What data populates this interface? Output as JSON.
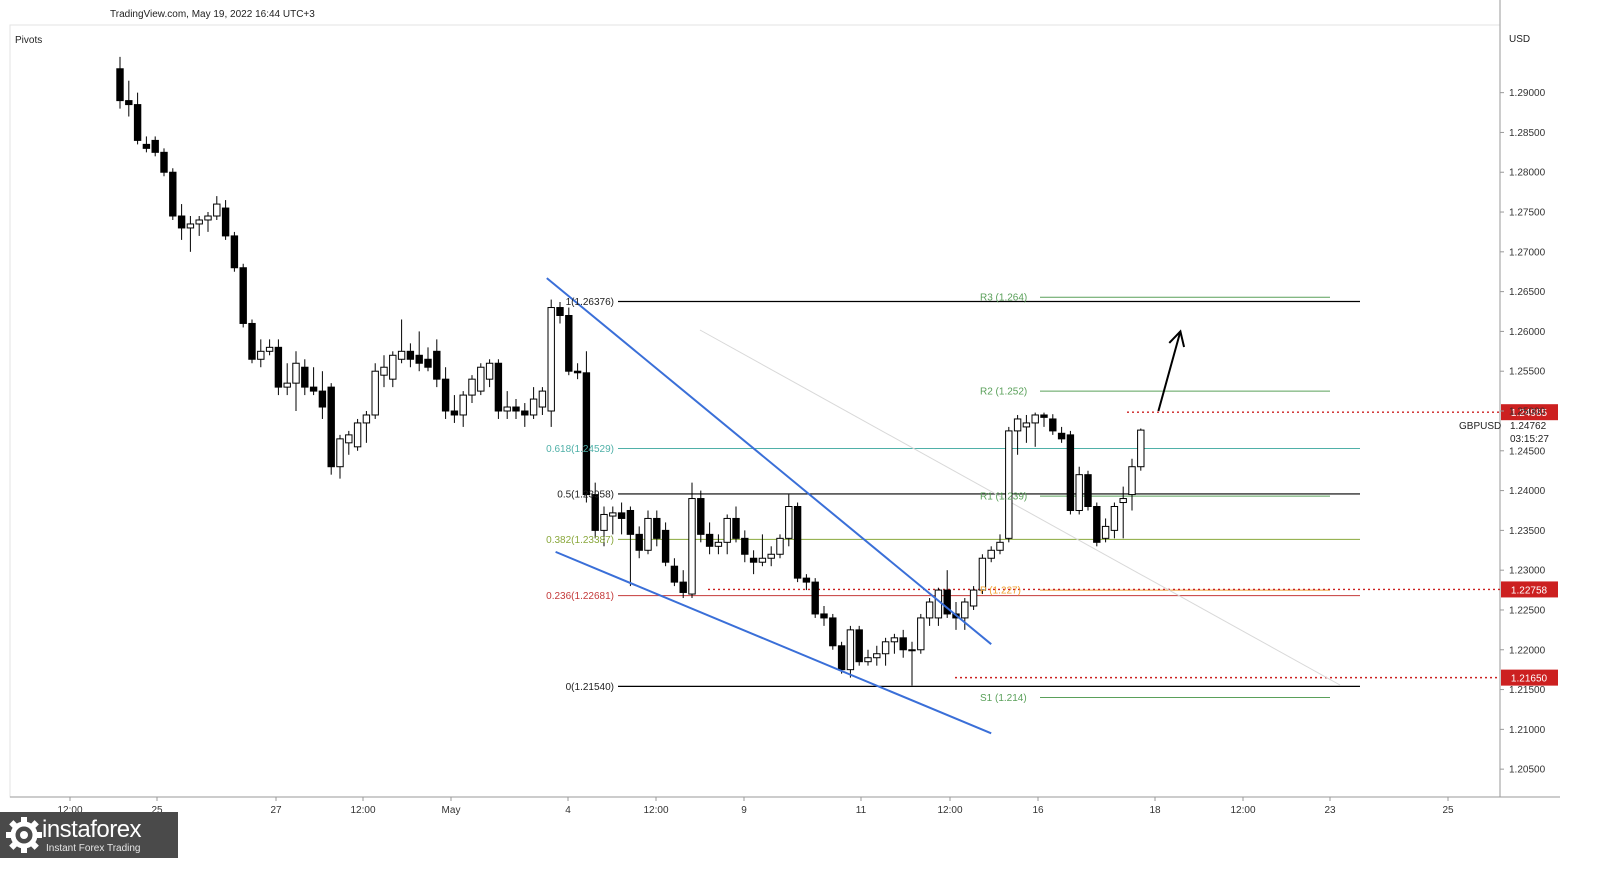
{
  "header": {
    "source": "TradingView.com, May 19, 2022 16:44 UTC+3",
    "indicator": "Pivots",
    "currency": "USD",
    "symbol": "GBPUSD",
    "last_price": "1.24762",
    "countdown": "03:15:27"
  },
  "logo": {
    "brand": "instaforex",
    "tagline": "Instant Forex Trading"
  },
  "chart_data": {
    "type": "candlestick",
    "symbol": "GBPUSD",
    "y_axis_ticks": [
      "1.29000",
      "1.28500",
      "1.28000",
      "1.27500",
      "1.27000",
      "1.26500",
      "1.26000",
      "1.25500",
      "1.25000",
      "1.24500",
      "1.24000",
      "1.23500",
      "1.23000",
      "1.22500",
      "1.22000",
      "1.21500",
      "1.21000",
      "1.20500"
    ],
    "ylim": [
      1.2015,
      1.2985
    ],
    "x_axis_ticks": [
      "12:00",
      "25",
      "27",
      "12:00",
      "May",
      "4",
      "12:00",
      "9",
      "11",
      "12:00",
      "16",
      "18",
      "12:00",
      "23",
      "25"
    ],
    "candles": [
      {
        "o": 1.293,
        "h": 1.2945,
        "l": 1.288,
        "c": 1.289
      },
      {
        "o": 1.289,
        "h": 1.2915,
        "l": 1.287,
        "c": 1.2885
      },
      {
        "o": 1.2885,
        "h": 1.29,
        "l": 1.2835,
        "c": 1.284
      },
      {
        "o": 1.2835,
        "h": 1.2845,
        "l": 1.2825,
        "c": 1.283
      },
      {
        "o": 1.284,
        "h": 1.2845,
        "l": 1.282,
        "c": 1.2825
      },
      {
        "o": 1.2825,
        "h": 1.283,
        "l": 1.2795,
        "c": 1.28
      },
      {
        "o": 1.28,
        "h": 1.2805,
        "l": 1.274,
        "c": 1.2745
      },
      {
        "o": 1.2745,
        "h": 1.276,
        "l": 1.2715,
        "c": 1.273
      },
      {
        "o": 1.273,
        "h": 1.2745,
        "l": 1.27,
        "c": 1.2735
      },
      {
        "o": 1.2735,
        "h": 1.2745,
        "l": 1.272,
        "c": 1.274
      },
      {
        "o": 1.274,
        "h": 1.275,
        "l": 1.2725,
        "c": 1.2745
      },
      {
        "o": 1.2745,
        "h": 1.277,
        "l": 1.274,
        "c": 1.276
      },
      {
        "o": 1.2755,
        "h": 1.2765,
        "l": 1.2715,
        "c": 1.272
      },
      {
        "o": 1.272,
        "h": 1.2725,
        "l": 1.2675,
        "c": 1.268
      },
      {
        "o": 1.268,
        "h": 1.2685,
        "l": 1.2605,
        "c": 1.261
      },
      {
        "o": 1.261,
        "h": 1.2615,
        "l": 1.256,
        "c": 1.2565
      },
      {
        "o": 1.2565,
        "h": 1.259,
        "l": 1.2555,
        "c": 1.2575
      },
      {
        "o": 1.2575,
        "h": 1.259,
        "l": 1.257,
        "c": 1.258
      },
      {
        "o": 1.258,
        "h": 1.259,
        "l": 1.252,
        "c": 1.253
      },
      {
        "o": 1.253,
        "h": 1.256,
        "l": 1.252,
        "c": 1.2535
      },
      {
        "o": 1.2535,
        "h": 1.2575,
        "l": 1.25,
        "c": 1.256
      },
      {
        "o": 1.2555,
        "h": 1.2565,
        "l": 1.252,
        "c": 1.253
      },
      {
        "o": 1.253,
        "h": 1.2555,
        "l": 1.252,
        "c": 1.2525
      },
      {
        "o": 1.2525,
        "h": 1.255,
        "l": 1.249,
        "c": 1.2505
      },
      {
        "o": 1.253,
        "h": 1.2535,
        "l": 1.242,
        "c": 1.243
      },
      {
        "o": 1.243,
        "h": 1.247,
        "l": 1.2415,
        "c": 1.2465
      },
      {
        "o": 1.246,
        "h": 1.2475,
        "l": 1.2445,
        "c": 1.247
      },
      {
        "o": 1.2455,
        "h": 1.249,
        "l": 1.245,
        "c": 1.2485
      },
      {
        "o": 1.2485,
        "h": 1.25,
        "l": 1.246,
        "c": 1.2495
      },
      {
        "o": 1.2495,
        "h": 1.256,
        "l": 1.249,
        "c": 1.255
      },
      {
        "o": 1.2545,
        "h": 1.257,
        "l": 1.253,
        "c": 1.2555
      },
      {
        "o": 1.254,
        "h": 1.2575,
        "l": 1.253,
        "c": 1.257
      },
      {
        "o": 1.2565,
        "h": 1.2615,
        "l": 1.256,
        "c": 1.2575
      },
      {
        "o": 1.2575,
        "h": 1.2585,
        "l": 1.2555,
        "c": 1.2565
      },
      {
        "o": 1.257,
        "h": 1.26,
        "l": 1.255,
        "c": 1.256
      },
      {
        "o": 1.2565,
        "h": 1.258,
        "l": 1.255,
        "c": 1.2555
      },
      {
        "o": 1.2575,
        "h": 1.259,
        "l": 1.253,
        "c": 1.254
      },
      {
        "o": 1.254,
        "h": 1.2555,
        "l": 1.249,
        "c": 1.25
      },
      {
        "o": 1.25,
        "h": 1.252,
        "l": 1.2485,
        "c": 1.2495
      },
      {
        "o": 1.2495,
        "h": 1.2525,
        "l": 1.248,
        "c": 1.252
      },
      {
        "o": 1.252,
        "h": 1.2545,
        "l": 1.251,
        "c": 1.254
      },
      {
        "o": 1.2525,
        "h": 1.256,
        "l": 1.252,
        "c": 1.2555
      },
      {
        "o": 1.254,
        "h": 1.2565,
        "l": 1.253,
        "c": 1.256
      },
      {
        "o": 1.256,
        "h": 1.2565,
        "l": 1.249,
        "c": 1.25
      },
      {
        "o": 1.25,
        "h": 1.2525,
        "l": 1.249,
        "c": 1.2505
      },
      {
        "o": 1.2505,
        "h": 1.2515,
        "l": 1.249,
        "c": 1.25
      },
      {
        "o": 1.25,
        "h": 1.251,
        "l": 1.248,
        "c": 1.2495
      },
      {
        "o": 1.2495,
        "h": 1.253,
        "l": 1.249,
        "c": 1.2515
      },
      {
        "o": 1.2505,
        "h": 1.253,
        "l": 1.2495,
        "c": 1.2525
      },
      {
        "o": 1.25,
        "h": 1.264,
        "l": 1.248,
        "c": 1.263
      },
      {
        "o": 1.263,
        "h": 1.2637,
        "l": 1.261,
        "c": 1.262
      },
      {
        "o": 1.262,
        "h": 1.263,
        "l": 1.2545,
        "c": 1.255
      },
      {
        "o": 1.255,
        "h": 1.256,
        "l": 1.254,
        "c": 1.2548
      },
      {
        "o": 1.2548,
        "h": 1.2575,
        "l": 1.2385,
        "c": 1.2395
      },
      {
        "o": 1.2395,
        "h": 1.241,
        "l": 1.234,
        "c": 1.235
      },
      {
        "o": 1.235,
        "h": 1.238,
        "l": 1.233,
        "c": 1.237
      },
      {
        "o": 1.2368,
        "h": 1.238,
        "l": 1.2345,
        "c": 1.2372
      },
      {
        "o": 1.2372,
        "h": 1.2385,
        "l": 1.2345,
        "c": 1.2365
      },
      {
        "o": 1.2375,
        "h": 1.238,
        "l": 1.228,
        "c": 1.2345
      },
      {
        "o": 1.2345,
        "h": 1.2355,
        "l": 1.2315,
        "c": 1.2325
      },
      {
        "o": 1.2325,
        "h": 1.2375,
        "l": 1.232,
        "c": 1.2365
      },
      {
        "o": 1.2365,
        "h": 1.2375,
        "l": 1.233,
        "c": 1.234
      },
      {
        "o": 1.235,
        "h": 1.236,
        "l": 1.2305,
        "c": 1.231
      },
      {
        "o": 1.2305,
        "h": 1.2315,
        "l": 1.228,
        "c": 1.2285
      },
      {
        "o": 1.2285,
        "h": 1.23,
        "l": 1.2265,
        "c": 1.2272
      },
      {
        "o": 1.227,
        "h": 1.241,
        "l": 1.2265,
        "c": 1.239
      },
      {
        "o": 1.239,
        "h": 1.24,
        "l": 1.2335,
        "c": 1.2345
      },
      {
        "o": 1.2345,
        "h": 1.236,
        "l": 1.232,
        "c": 1.233
      },
      {
        "o": 1.233,
        "h": 1.2345,
        "l": 1.232,
        "c": 1.2335
      },
      {
        "o": 1.2335,
        "h": 1.237,
        "l": 1.232,
        "c": 1.2365
      },
      {
        "o": 1.2365,
        "h": 1.238,
        "l": 1.2335,
        "c": 1.234
      },
      {
        "o": 1.234,
        "h": 1.235,
        "l": 1.231,
        "c": 1.232
      },
      {
        "o": 1.2315,
        "h": 1.2325,
        "l": 1.2295,
        "c": 1.231
      },
      {
        "o": 1.231,
        "h": 1.2345,
        "l": 1.2305,
        "c": 1.2315
      },
      {
        "o": 1.2315,
        "h": 1.233,
        "l": 1.2305,
        "c": 1.232
      },
      {
        "o": 1.232,
        "h": 1.2345,
        "l": 1.2315,
        "c": 1.234
      },
      {
        "o": 1.234,
        "h": 1.2395,
        "l": 1.233,
        "c": 1.238
      },
      {
        "o": 1.238,
        "h": 1.2385,
        "l": 1.2285,
        "c": 1.229
      },
      {
        "o": 1.229,
        "h": 1.2295,
        "l": 1.2275,
        "c": 1.2285
      },
      {
        "o": 1.2285,
        "h": 1.229,
        "l": 1.224,
        "c": 1.2245
      },
      {
        "o": 1.2245,
        "h": 1.2255,
        "l": 1.223,
        "c": 1.224
      },
      {
        "o": 1.224,
        "h": 1.2245,
        "l": 1.22,
        "c": 1.2205
      },
      {
        "o": 1.2205,
        "h": 1.221,
        "l": 1.217,
        "c": 1.2175
      },
      {
        "o": 1.2175,
        "h": 1.223,
        "l": 1.2165,
        "c": 1.2225
      },
      {
        "o": 1.2225,
        "h": 1.223,
        "l": 1.218,
        "c": 1.2185
      },
      {
        "o": 1.2185,
        "h": 1.22,
        "l": 1.218,
        "c": 1.219
      },
      {
        "o": 1.219,
        "h": 1.2205,
        "l": 1.218,
        "c": 1.2195
      },
      {
        "o": 1.2195,
        "h": 1.2215,
        "l": 1.218,
        "c": 1.221
      },
      {
        "o": 1.221,
        "h": 1.222,
        "l": 1.2195,
        "c": 1.2215
      },
      {
        "o": 1.2215,
        "h": 1.2225,
        "l": 1.219,
        "c": 1.22
      },
      {
        "o": 1.22,
        "h": 1.221,
        "l": 1.2155,
        "c": 1.22
      },
      {
        "o": 1.22,
        "h": 1.2245,
        "l": 1.2195,
        "c": 1.224
      },
      {
        "o": 1.224,
        "h": 1.2265,
        "l": 1.223,
        "c": 1.226
      },
      {
        "o": 1.224,
        "h": 1.2278,
        "l": 1.223,
        "c": 1.2275
      },
      {
        "o": 1.2275,
        "h": 1.23,
        "l": 1.224,
        "c": 1.2245
      },
      {
        "o": 1.2245,
        "h": 1.226,
        "l": 1.2225,
        "c": 1.224
      },
      {
        "o": 1.224,
        "h": 1.2265,
        "l": 1.2225,
        "c": 1.226
      },
      {
        "o": 1.2255,
        "h": 1.228,
        "l": 1.225,
        "c": 1.2275
      },
      {
        "o": 1.2275,
        "h": 1.232,
        "l": 1.227,
        "c": 1.2315
      },
      {
        "o": 1.2315,
        "h": 1.233,
        "l": 1.231,
        "c": 1.2325
      },
      {
        "o": 1.2325,
        "h": 1.2345,
        "l": 1.232,
        "c": 1.2335
      },
      {
        "o": 1.234,
        "h": 1.248,
        "l": 1.2335,
        "c": 1.2475
      },
      {
        "o": 1.2475,
        "h": 1.2495,
        "l": 1.2445,
        "c": 1.249
      },
      {
        "o": 1.248,
        "h": 1.2495,
        "l": 1.246,
        "c": 1.2485
      },
      {
        "o": 1.2485,
        "h": 1.2498,
        "l": 1.2455,
        "c": 1.2495
      },
      {
        "o": 1.2495,
        "h": 1.2498,
        "l": 1.248,
        "c": 1.2492
      },
      {
        "o": 1.249,
        "h": 1.2496,
        "l": 1.247,
        "c": 1.2475
      },
      {
        "o": 1.2472,
        "h": 1.248,
        "l": 1.246,
        "c": 1.2465
      },
      {
        "o": 1.247,
        "h": 1.2475,
        "l": 1.237,
        "c": 1.2375
      },
      {
        "o": 1.2375,
        "h": 1.243,
        "l": 1.237,
        "c": 1.242
      },
      {
        "o": 1.242,
        "h": 1.2425,
        "l": 1.2375,
        "c": 1.238
      },
      {
        "o": 1.238,
        "h": 1.2385,
        "l": 1.233,
        "c": 1.2335
      },
      {
        "o": 1.234,
        "h": 1.2365,
        "l": 1.2335,
        "c": 1.2355
      },
      {
        "o": 1.235,
        "h": 1.2385,
        "l": 1.234,
        "c": 1.238
      },
      {
        "o": 1.2385,
        "h": 1.2405,
        "l": 1.234,
        "c": 1.239
      },
      {
        "o": 1.2395,
        "h": 1.244,
        "l": 1.2375,
        "c": 1.243
      },
      {
        "o": 1.243,
        "h": 1.2478,
        "l": 1.2425,
        "c": 1.2476
      }
    ],
    "fibonacci": [
      {
        "label": "1(1.26376)",
        "value": 1.26376,
        "color": "#000000"
      },
      {
        "label": "0.618(1.24529)",
        "value": 1.24529,
        "color": "#4fb0a8"
      },
      {
        "label": "0.5(1.23958)",
        "value": 1.23958,
        "color": "#000000"
      },
      {
        "label": "0.382(1.23387)",
        "value": 1.23387,
        "color": "#8aa83c"
      },
      {
        "label": "0.236(1.22681)",
        "value": 1.22681,
        "color": "#c43a3a"
      },
      {
        "label": "0(1.21540)",
        "value": 1.2154,
        "color": "#000000"
      }
    ],
    "pivots": [
      {
        "label": "R3 (1.264)",
        "value": 1.2643,
        "color": "#5aa05a"
      },
      {
        "label": "R2 (1.252)",
        "value": 1.2525,
        "color": "#5aa05a"
      },
      {
        "label": "R1 (1.239)",
        "value": 1.2393,
        "color": "#5aa05a"
      },
      {
        "label": "P (1.227)",
        "value": 1.2275,
        "color": "#f0a030"
      },
      {
        "label": "S1 (1.214)",
        "value": 1.214,
        "color": "#5aa05a"
      }
    ],
    "marked_levels": [
      {
        "label": "1.24985",
        "value": 1.24985,
        "color": "#cc2020"
      },
      {
        "label": "1.22758",
        "value": 1.22758,
        "color": "#cc2020"
      },
      {
        "label": "1.21650",
        "value": 1.2165,
        "color": "#cc2020"
      }
    ],
    "trendlines": [
      {
        "name": "upper",
        "from": {
          "bar": 48.5,
          "price": 1.2667
        },
        "to": {
          "bar": 99.0,
          "price": 1.2207
        },
        "color": "#3a6fd8"
      },
      {
        "name": "lower",
        "from": {
          "bar": 49.5,
          "price": 1.2323
        },
        "to": {
          "bar": 99.0,
          "price": 1.2095
        },
        "color": "#3a6fd8"
      }
    ],
    "projection_arrow": {
      "from": {
        "bar": 118.0,
        "price": 1.25
      },
      "to": {
        "bar": 120.5,
        "price": 1.26
      }
    }
  }
}
